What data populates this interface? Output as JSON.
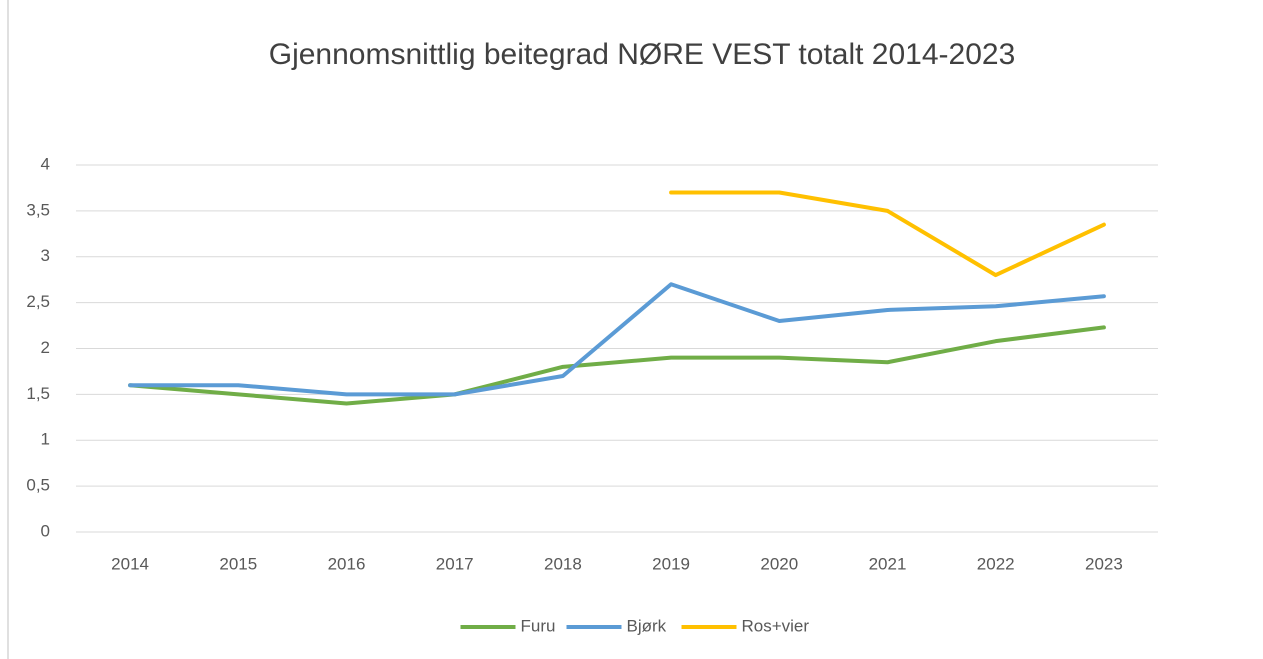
{
  "chart_data": {
    "type": "line",
    "title": "Gjennomsnittlig beitegrad NØRE VEST totalt 2014-2023",
    "categories": [
      "2014",
      "2015",
      "2016",
      "2017",
      "2018",
      "2019",
      "2020",
      "2021",
      "2022",
      "2023"
    ],
    "series": [
      {
        "name": "Furu",
        "color": "#70ad47",
        "values": [
          1.6,
          1.5,
          1.4,
          1.5,
          1.8,
          1.9,
          1.9,
          1.85,
          2.08,
          2.23
        ]
      },
      {
        "name": "Bjørk",
        "color": "#5b9bd5",
        "values": [
          1.6,
          1.6,
          1.5,
          1.5,
          1.7,
          2.7,
          2.3,
          2.42,
          2.46,
          2.57
        ]
      },
      {
        "name": "Ros+vier",
        "color": "#ffc000",
        "values": [
          null,
          null,
          null,
          null,
          null,
          3.7,
          3.7,
          3.5,
          2.8,
          3.35
        ]
      }
    ],
    "ylim": [
      0,
      4
    ],
    "yticks": [
      0,
      {
        "value": 0.5,
        "label": "0,5"
      },
      1,
      {
        "value": 1.5,
        "label": "1,5"
      },
      2,
      {
        "value": 2.5,
        "label": "2,5"
      },
      3,
      {
        "value": 3.5,
        "label": "3,5"
      },
      4
    ],
    "grid": true,
    "legend": "bottom"
  }
}
